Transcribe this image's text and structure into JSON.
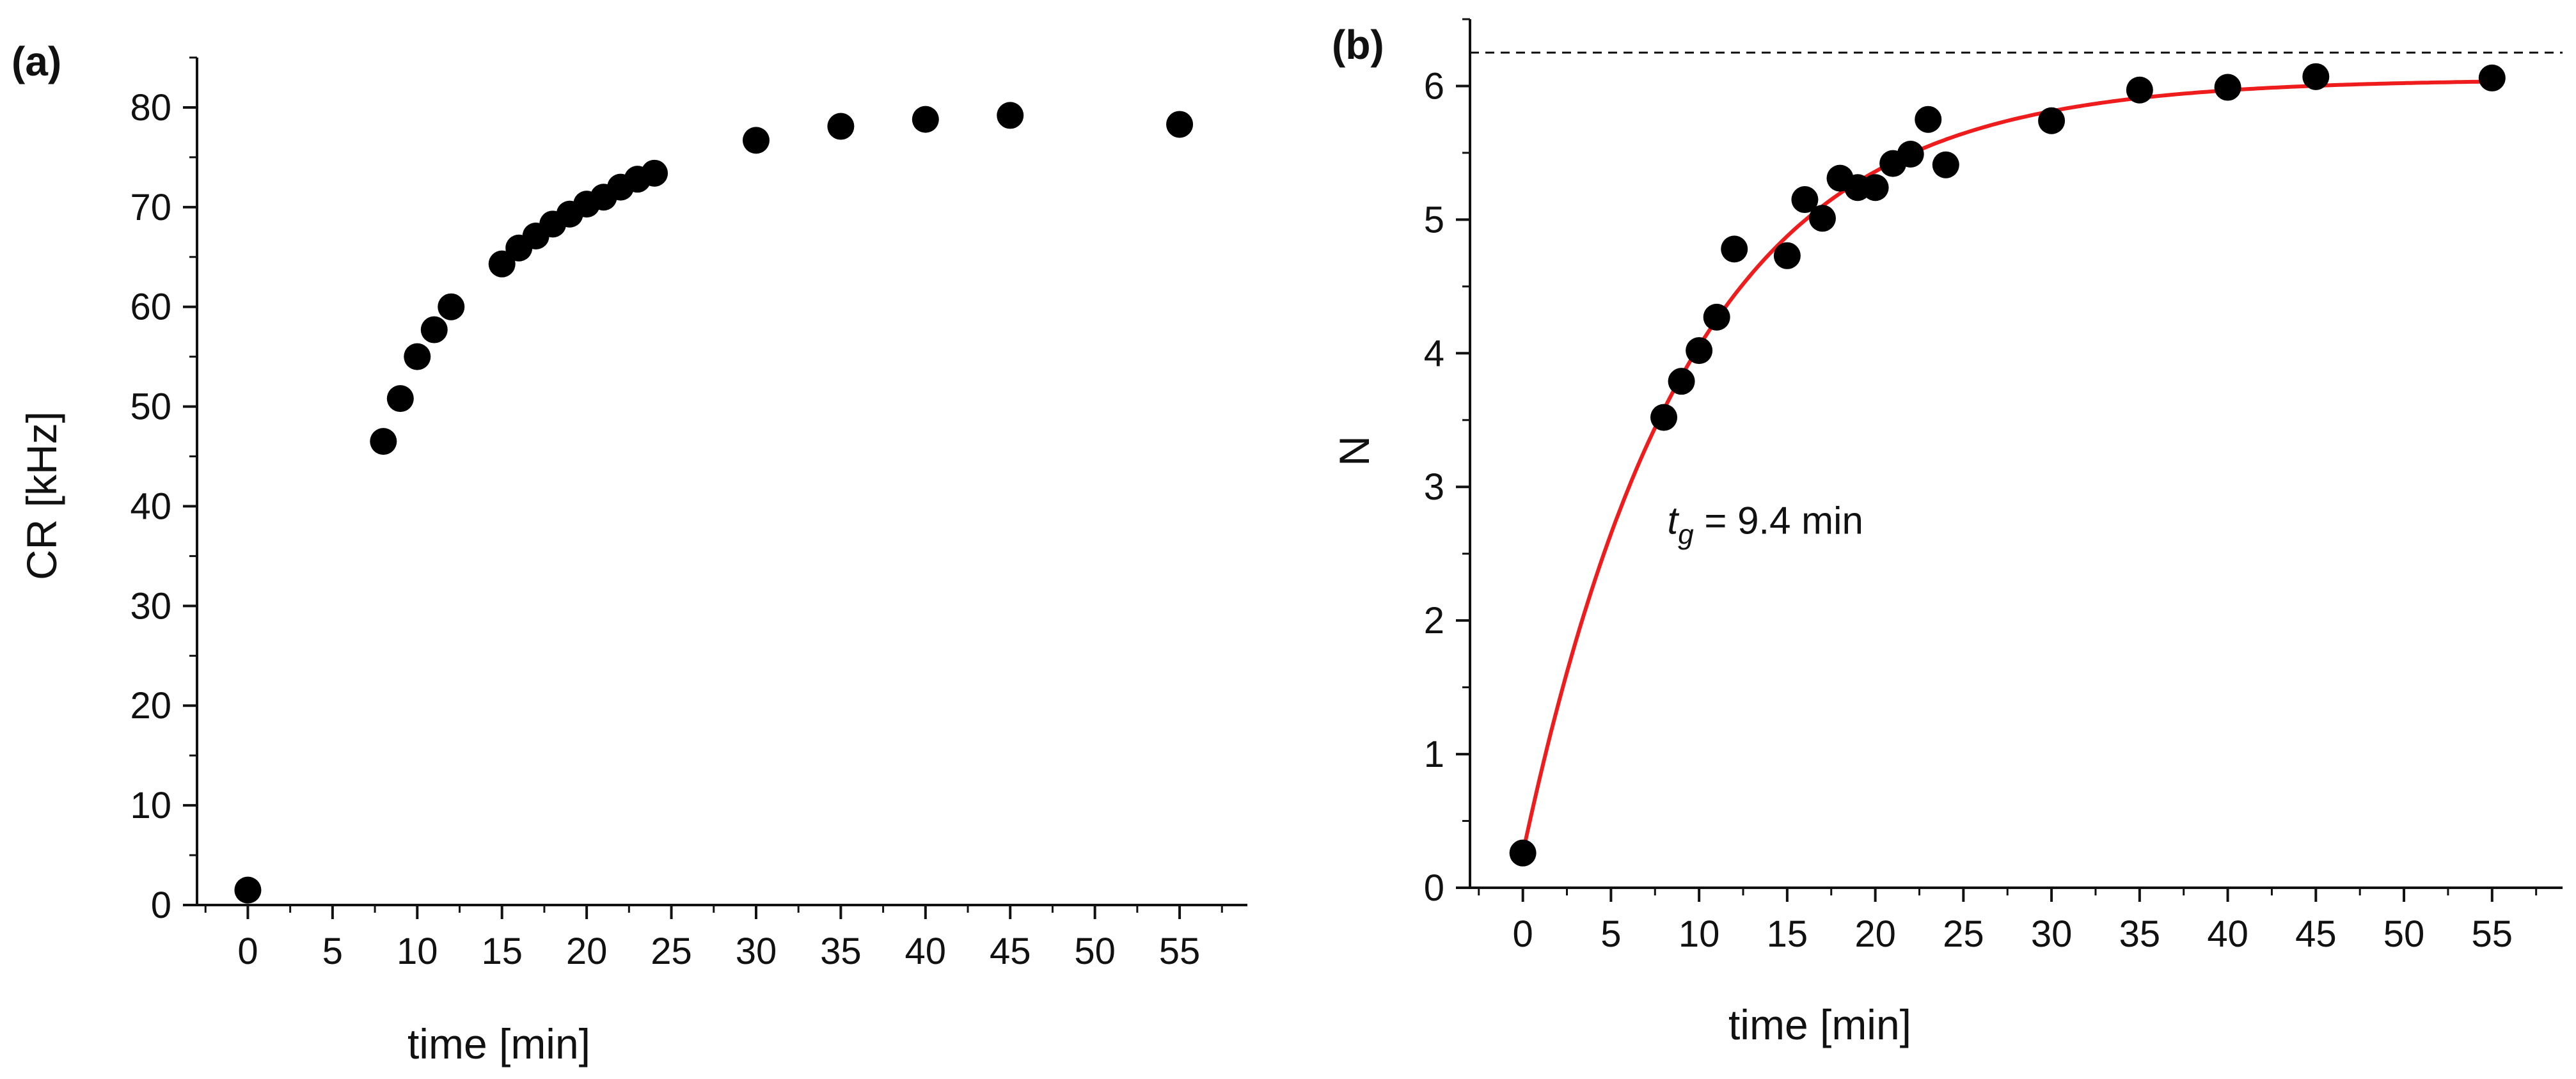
{
  "chart_data": [
    {
      "type": "scatter",
      "panel_label": "(a)",
      "title": "",
      "xlabel": "time [min]",
      "ylabel": "CR [kHz]",
      "xlim": [
        -3,
        59
      ],
      "ylim": [
        0,
        85
      ],
      "xticks": [
        0,
        5,
        10,
        15,
        20,
        25,
        30,
        35,
        40,
        45,
        50,
        55
      ],
      "yticks": [
        0,
        10,
        20,
        30,
        40,
        50,
        60,
        70,
        80
      ],
      "grid": false,
      "legend": "none",
      "marker_color": "#000000",
      "x": [
        0,
        8,
        9,
        10,
        11,
        12,
        15,
        16,
        17,
        18,
        19,
        20,
        21,
        22,
        23,
        24,
        30,
        35,
        40,
        45,
        55
      ],
      "y": [
        1.5,
        46.5,
        50.8,
        55.0,
        57.7,
        60.0,
        64.3,
        65.9,
        67.1,
        68.3,
        69.3,
        70.3,
        71.0,
        72.0,
        72.8,
        73.4,
        76.7,
        78.1,
        78.8,
        79.2,
        78.3
      ]
    },
    {
      "type": "scatter",
      "panel_label": "(b)",
      "title": "",
      "xlabel": "time [min]",
      "ylabel": "N",
      "xlim": [
        -3,
        59
      ],
      "ylim": [
        0,
        6.5
      ],
      "xticks": [
        0,
        5,
        10,
        15,
        20,
        25,
        30,
        35,
        40,
        45,
        50,
        55
      ],
      "yticks": [
        0,
        1,
        2,
        3,
        4,
        5,
        6
      ],
      "grid": false,
      "legend": "none",
      "marker_color": "#000000",
      "fit_color": "#ee1c1c",
      "x": [
        0,
        8,
        9,
        10,
        11,
        12,
        15,
        16,
        17,
        18,
        19,
        20,
        21,
        22,
        23,
        24,
        30,
        35,
        40,
        45,
        55
      ],
      "y": [
        0.26,
        3.52,
        3.79,
        4.02,
        4.27,
        4.78,
        4.73,
        5.15,
        5.01,
        5.31,
        5.24,
        5.24,
        5.42,
        5.49,
        5.75,
        5.41,
        5.74,
        5.97,
        5.99,
        6.07,
        6.06
      ],
      "fit": {
        "model": "exponential-saturation",
        "start": 0.26,
        "plateau": 6.05,
        "time_constant": 9.4,
        "x_range": [
          0,
          55
        ]
      },
      "reference_line": {
        "y": 6.25,
        "style": "dashed"
      },
      "annotation": {
        "symbol": "t",
        "subscript": "g",
        "text": " = 9.4 min",
        "x": 8.2,
        "y": 2.65
      }
    }
  ]
}
